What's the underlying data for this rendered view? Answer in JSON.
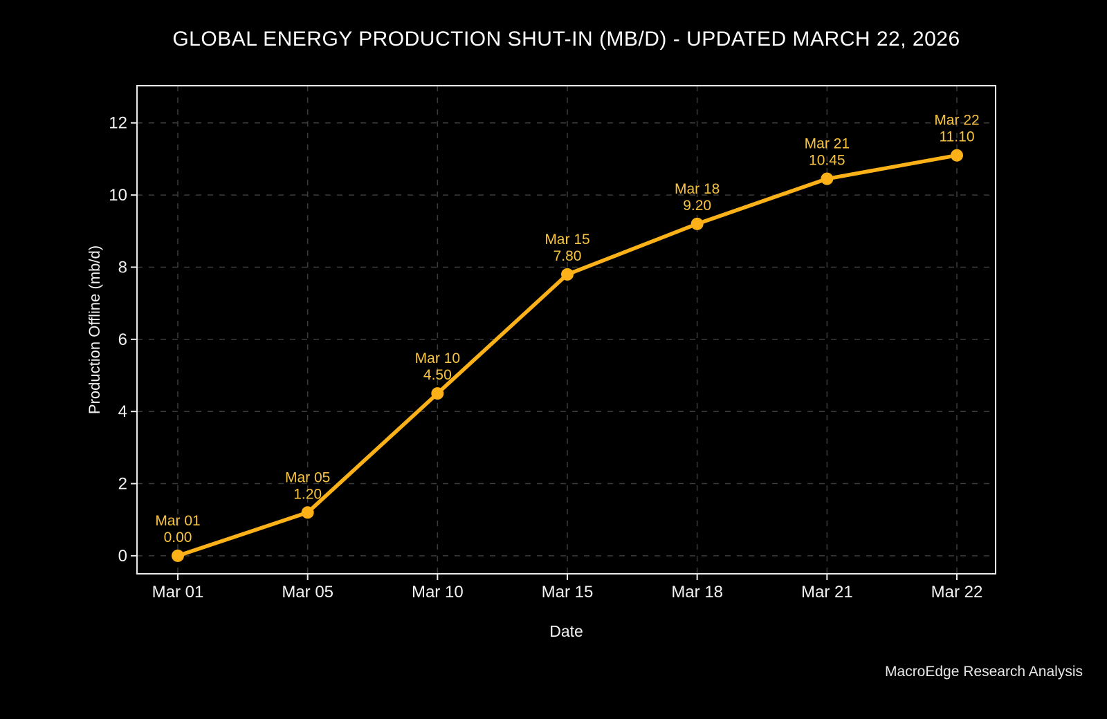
{
  "header": {
    "title": "GLOBAL ENERGY PRODUCTION SHUT-IN (MB/D) - UPDATED MARCH 22, 2026"
  },
  "footer": {
    "credit": "MacroEdge Research Analysis"
  },
  "colors": {
    "background": "#000000",
    "line": "#FBB117",
    "marker": "#FBB117",
    "annotation": "#F8C440",
    "spine": "#EBEBEB",
    "tick": "#EBEBEB",
    "tick_label": "#F2F2F2",
    "grid": "#3C3C3C",
    "title": "#FFFFFF",
    "footer_text": "#E8E8E8"
  },
  "chart_data": {
    "type": "line",
    "title": "GLOBAL ENERGY PRODUCTION SHUT-IN (MB/D) - UPDATED MARCH 22, 2026",
    "xlabel": "Date",
    "ylabel": "Production Offline (mb/d)",
    "categories": [
      "Mar 01",
      "Mar 05",
      "Mar 10",
      "Mar 15",
      "Mar 18",
      "Mar 21",
      "Mar 22"
    ],
    "values": [
      0.0,
      1.2,
      4.5,
      7.8,
      9.2,
      10.45,
      11.1
    ],
    "value_labels": [
      "0.00",
      "1.20",
      "4.50",
      "7.80",
      "9.20",
      "10.45",
      "11.10"
    ],
    "yticks": [
      0,
      2,
      4,
      6,
      8,
      10,
      12
    ],
    "ylim": [
      -0.5,
      13.03
    ],
    "grid": true,
    "grid_style": "dashed",
    "legend": "none",
    "annotations_per_point": true
  }
}
